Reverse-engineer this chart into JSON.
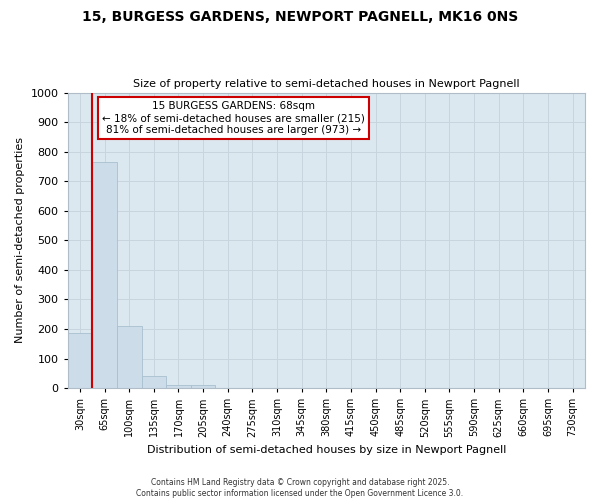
{
  "title": "15, BURGESS GARDENS, NEWPORT PAGNELL, MK16 0NS",
  "subtitle": "Size of property relative to semi-detached houses in Newport Pagnell",
  "xlabel": "Distribution of semi-detached houses by size in Newport Pagnell",
  "ylabel": "Number of semi-detached properties",
  "bar_labels": [
    "30sqm",
    "65sqm",
    "100sqm",
    "135sqm",
    "170sqm",
    "205sqm",
    "240sqm",
    "275sqm",
    "310sqm",
    "345sqm",
    "380sqm",
    "415sqm",
    "450sqm",
    "485sqm",
    "520sqm",
    "555sqm",
    "590sqm",
    "625sqm",
    "660sqm",
    "695sqm",
    "730sqm"
  ],
  "bar_values": [
    185,
    765,
    210,
    40,
    12,
    12,
    0,
    0,
    0,
    0,
    0,
    0,
    0,
    0,
    0,
    0,
    0,
    0,
    0,
    0,
    0
  ],
  "bar_color": "#ccdce8",
  "bar_edgecolor": "#a8c0d0",
  "property_line_x": 0.5,
  "annotation_title": "15 BURGESS GARDENS: 68sqm",
  "annotation_line1": "← 18% of semi-detached houses are smaller (215)",
  "annotation_line2": "81% of semi-detached houses are larger (973) →",
  "annotation_box_color": "#ffffff",
  "annotation_box_edgecolor": "#cc0000",
  "vline_color": "#cc0000",
  "ylim": [
    0,
    1000
  ],
  "yticks": [
    0,
    100,
    200,
    300,
    400,
    500,
    600,
    700,
    800,
    900,
    1000
  ],
  "grid_color": "#c8d4de",
  "plot_bg_color": "#dce8f0",
  "fig_bg_color": "#ffffff",
  "footer": "Contains HM Land Registry data © Crown copyright and database right 2025.\nContains public sector information licensed under the Open Government Licence 3.0."
}
